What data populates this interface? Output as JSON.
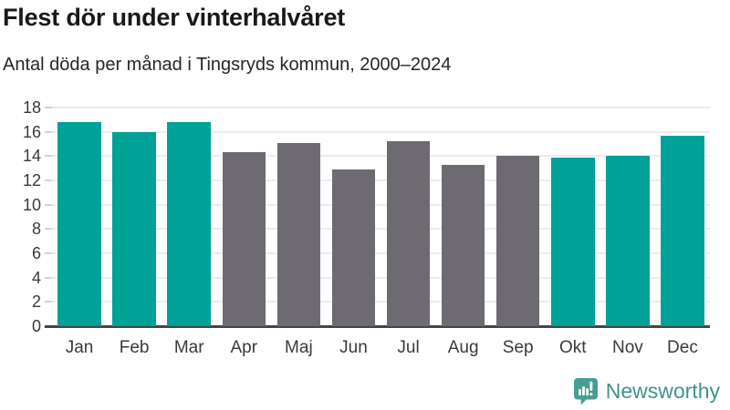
{
  "header": {
    "title": "Flest dör under vinterhalvåret",
    "subtitle": "Antal döda per månad i Tingsryds kommun, 2000–2024"
  },
  "chart_data": {
    "type": "bar",
    "title": "Flest dör under vinterhalvåret",
    "subtitle": "Antal döda per månad i Tingsryds kommun, 2000–2024",
    "categories": [
      "Jan",
      "Feb",
      "Mar",
      "Apr",
      "Maj",
      "Jun",
      "Jul",
      "Aug",
      "Sep",
      "Okt",
      "Nov",
      "Dec"
    ],
    "values": [
      16.8,
      16.0,
      16.8,
      14.3,
      15.1,
      12.9,
      15.2,
      13.3,
      14.0,
      13.9,
      14.0,
      15.7
    ],
    "bar_colors": [
      "#00a196",
      "#00a196",
      "#00a196",
      "#6d6a72",
      "#6d6a72",
      "#6d6a72",
      "#6d6a72",
      "#6d6a72",
      "#6d6a72",
      "#00a196",
      "#00a196",
      "#00a196"
    ],
    "highlight_color": "#00a196",
    "default_color": "#6d6a72",
    "ylim": [
      0,
      18
    ],
    "yticks": [
      0,
      2,
      4,
      6,
      8,
      10,
      12,
      14,
      16,
      18
    ],
    "grid": true,
    "legend_position": "none",
    "xlabel": "",
    "ylabel": ""
  },
  "footer": {
    "brand": "Newsworthy",
    "brand_color": "#3f948b",
    "icon": "newsworthy-speech-bubble-chart-icon"
  }
}
